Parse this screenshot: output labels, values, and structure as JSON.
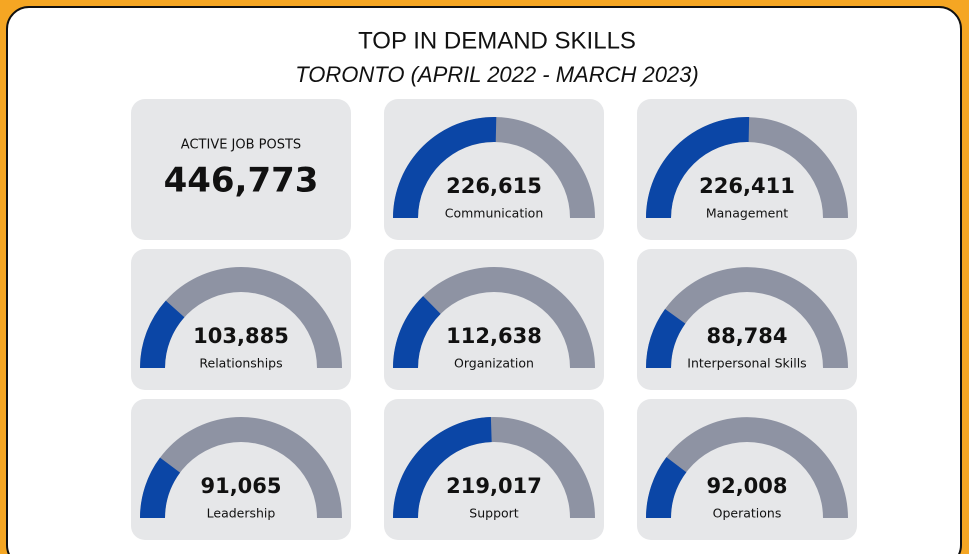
{
  "chart_data": {
    "type": "gauge",
    "title": "TOP IN DEMAND SKILLS",
    "subtitle": "TORONTO (APRIL 2022 - MARCH 2023)",
    "total_label": "ACTIVE JOB POSTS",
    "total": 446773,
    "total_value_label": "446,773",
    "categories": [
      "Communication",
      "Management",
      "Relationships",
      "Organization",
      "Interpersonal Skills",
      "Leadership",
      "Support",
      "Operations"
    ],
    "values": [
      226615,
      226411,
      103885,
      112638,
      88784,
      91065,
      219017,
      92008
    ],
    "value_labels": [
      "226,615",
      "226,411",
      "103,885",
      "112,638",
      "88,784",
      "91,065",
      "219,017",
      "92,008"
    ],
    "color": "#0b46a6",
    "track_color": "#8e93a3"
  }
}
